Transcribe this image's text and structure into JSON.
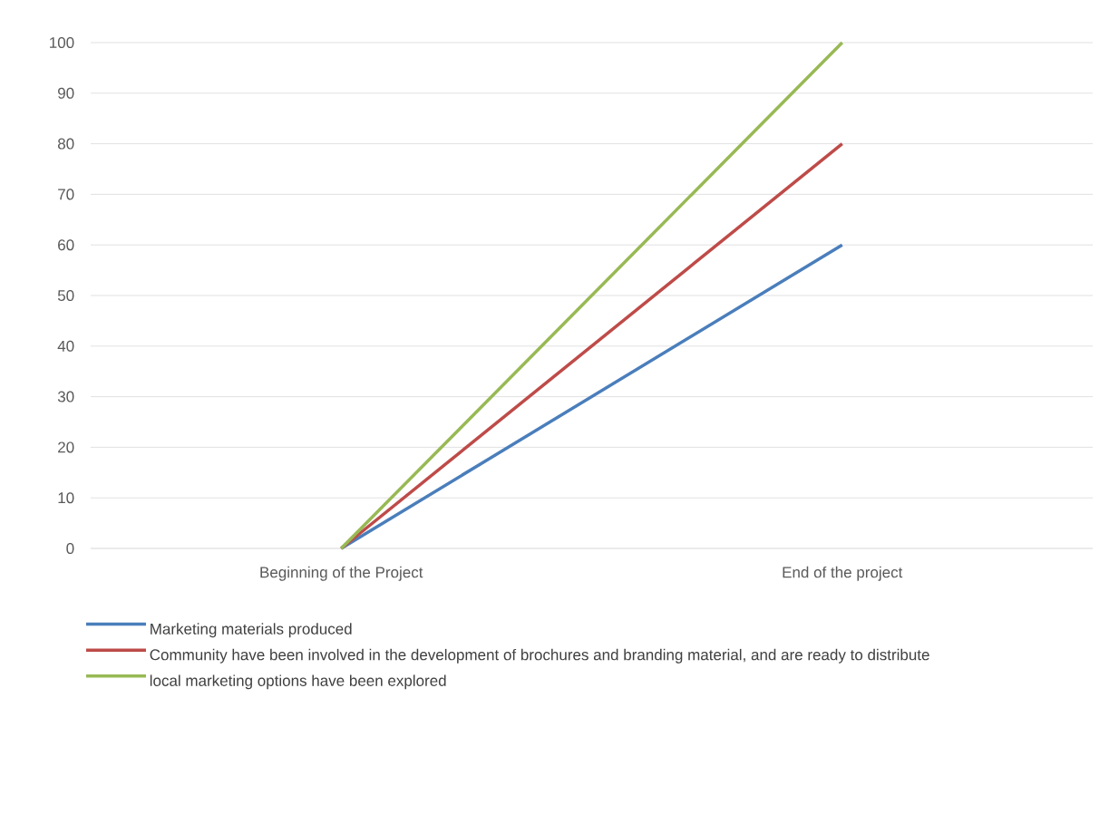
{
  "chart_data": {
    "type": "line",
    "categories": [
      "Beginning of the Project",
      "End of the project"
    ],
    "series": [
      {
        "name": "Marketing materials  produced",
        "color": "#4a7ebb",
        "values": [
          0,
          60
        ]
      },
      {
        "name": "Community have been involved in the development of brochures and branding material, and are ready to distribute",
        "color": "#be4b48",
        "values": [
          0,
          80
        ]
      },
      {
        "name": "local marketing options have been explored",
        "color": "#98b954",
        "values": [
          0,
          100
        ]
      }
    ],
    "ylim": [
      0,
      100
    ],
    "yticks": [
      0,
      10,
      20,
      30,
      40,
      50,
      60,
      70,
      80,
      90,
      100
    ],
    "grid": "y",
    "legend": "bottom",
    "marker": "none",
    "line_style": "solid"
  }
}
